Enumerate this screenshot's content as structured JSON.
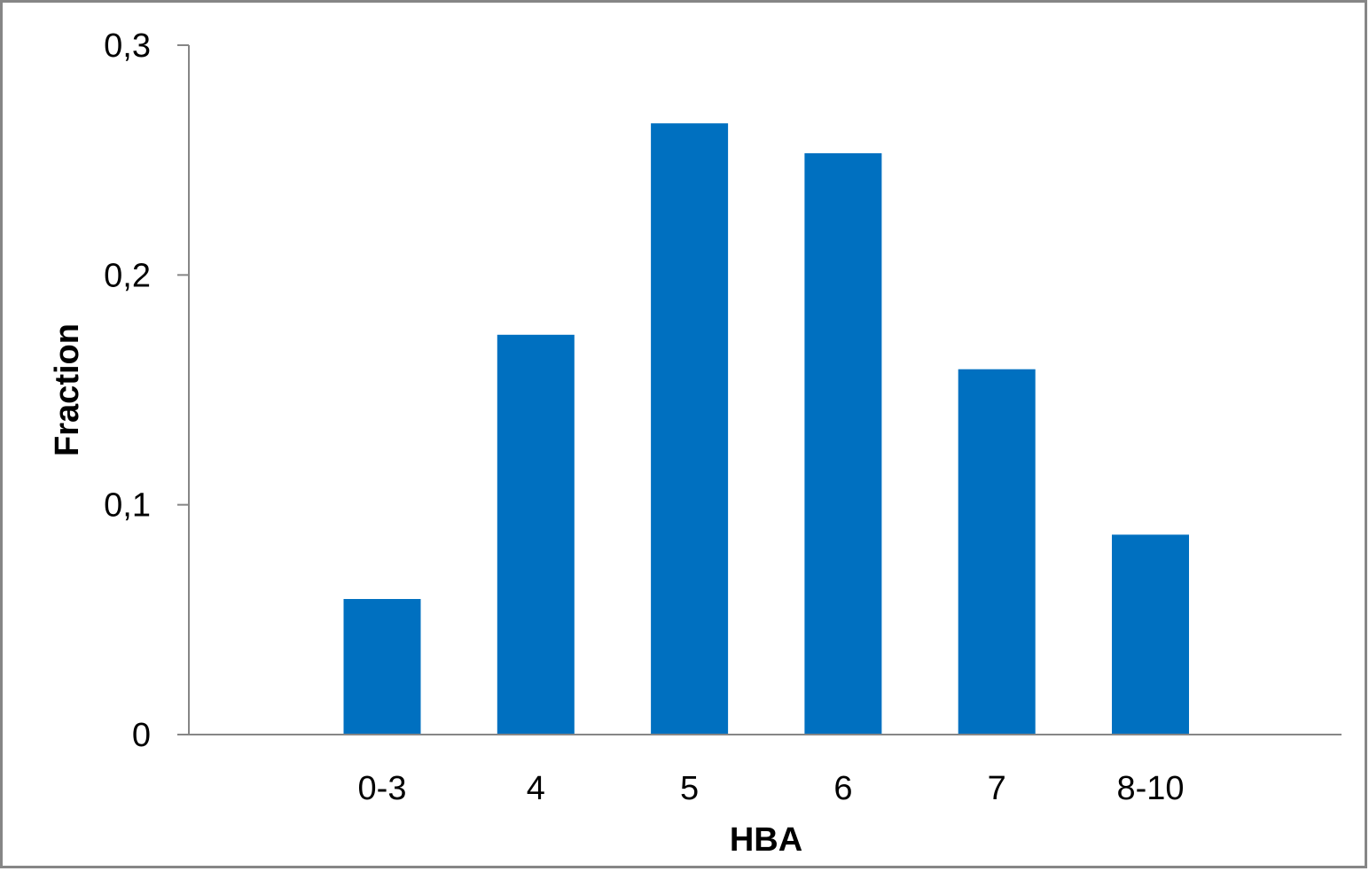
{
  "chart_data": {
    "type": "bar",
    "title": "",
    "xlabel": "HBA",
    "ylabel": "Fraction",
    "categories": [
      "0-3",
      "4",
      "5",
      "6",
      "7",
      "8-10"
    ],
    "values": [
      0.059,
      0.174,
      0.266,
      0.253,
      0.159,
      0.087
    ],
    "ylim": [
      0,
      0.3
    ],
    "yticks": [
      0,
      0.1,
      0.2,
      0.3
    ],
    "ytick_labels": [
      "0",
      "0,1",
      "0,2",
      "0,3"
    ],
    "grid": false,
    "legend": "none",
    "bar_color": "#0070C0",
    "axis_color": "#868686",
    "border_color": "#868686"
  }
}
